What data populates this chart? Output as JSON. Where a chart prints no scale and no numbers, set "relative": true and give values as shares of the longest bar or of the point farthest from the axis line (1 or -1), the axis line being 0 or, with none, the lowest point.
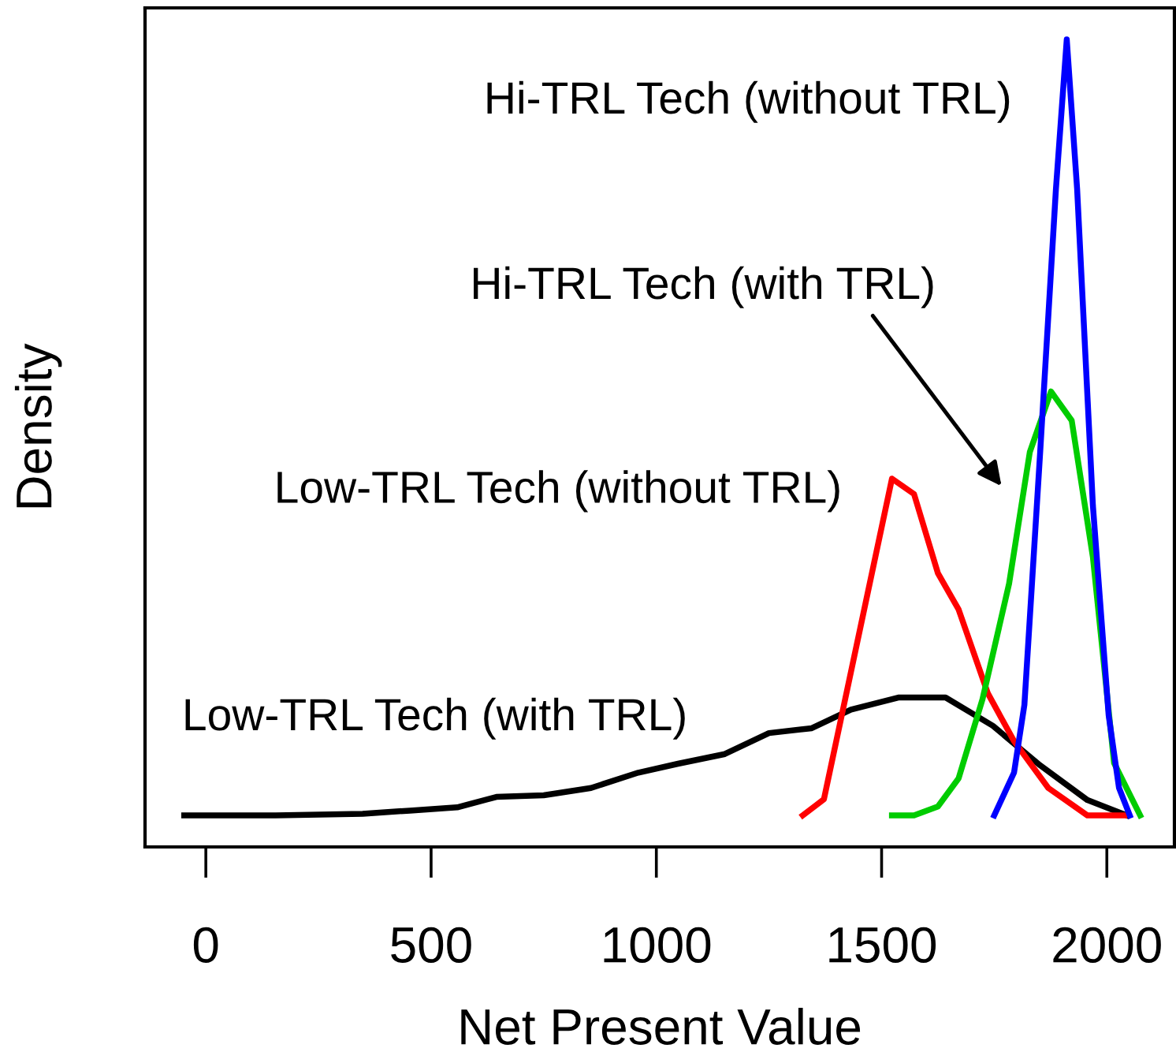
{
  "chart_data": {
    "type": "line",
    "xlabel": "Net Present Value",
    "ylabel": "Density",
    "relative": true,
    "tick_labels": "x",
    "xlim": [
      -135,
      2150
    ],
    "xticks": [
      0,
      500,
      1000,
      1500,
      2000
    ],
    "series": [
      {
        "color": "#000000",
        "x": [
          -48,
          155,
          348,
          453,
          558,
          645,
          750,
          855,
          960,
          1048,
          1152,
          1250,
          1345,
          1432,
          1537,
          1642,
          1747,
          1852,
          1957,
          2045
        ],
        "values": [
          0.039,
          0.039,
          0.041,
          0.045,
          0.049,
          0.062,
          0.064,
          0.073,
          0.092,
          0.103,
          0.115,
          0.141,
          0.147,
          0.17,
          0.185,
          0.185,
          0.15,
          0.101,
          0.058,
          0.039
        ]
      },
      {
        "color": "#ff0000",
        "x": [
          1325,
          1372,
          1523,
          1572,
          1625,
          1671,
          1736,
          1794,
          1870,
          1957,
          2039
        ],
        "values": [
          0.039,
          0.059,
          0.456,
          0.437,
          0.339,
          0.294,
          0.19,
          0.131,
          0.073,
          0.039,
          0.039
        ]
      },
      {
        "color": "#00cc00",
        "x": [
          1523,
          1572,
          1625,
          1671,
          1724,
          1783,
          1829,
          1876,
          1922,
          1969,
          2016,
          2074
        ],
        "values": [
          0.039,
          0.039,
          0.05,
          0.085,
          0.183,
          0.326,
          0.489,
          0.564,
          0.528,
          0.359,
          0.104,
          0.039
        ]
      },
      {
        "color": "#0000ff",
        "x": [
          1750,
          1794,
          1817,
          1852,
          1887,
          1911,
          1934,
          1969,
          2004,
          2027,
          2051
        ],
        "values": [
          0.039,
          0.092,
          0.176,
          0.489,
          0.815,
          1,
          0.815,
          0.423,
          0.163,
          0.073,
          0.039
        ]
      }
    ],
    "annotations": [
      "Low-TRL Tech (with TRL)",
      "Low-TRL Tech (without TRL)",
      "Hi-TRL Tech (with TRL)",
      "Hi-TRL Tech (without TRL)"
    ]
  }
}
